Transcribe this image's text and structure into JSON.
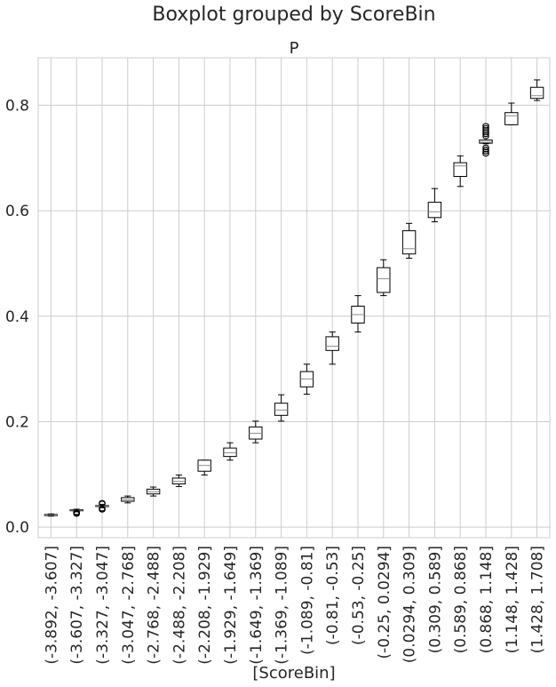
{
  "chart_data": {
    "type": "boxplot",
    "suptitle": "Boxplot grouped by ScoreBin",
    "title": "P",
    "xlabel": "[ScoreBin]",
    "ylabel": "",
    "ylim": [
      -0.02,
      0.89
    ],
    "yticks": [
      0.0,
      0.2,
      0.4,
      0.6,
      0.8
    ],
    "ytick_labels": [
      "0.0",
      "0.2",
      "0.4",
      "0.6",
      "0.8"
    ],
    "grid": true,
    "categories": [
      "(-3.892, -3.607]",
      "(-3.607, -3.327]",
      "(-3.327, -3.047]",
      "(-3.047, -2.768]",
      "(-2.768, -2.488]",
      "(-2.488, -2.208]",
      "(-2.208, -1.929]",
      "(-1.929, -1.649]",
      "(-1.649, -1.369]",
      "(-1.369, -1.089]",
      "(-1.089, -0.81]",
      "(-0.81, -0.53]",
      "(-0.53, -0.25]",
      "(-0.25, 0.0294]",
      "(0.0294, 0.309]",
      "(0.309, 0.589]",
      "(0.589, 0.868]",
      "(0.868, 1.148]",
      "(1.148, 1.428]",
      "(1.428, 1.708]"
    ],
    "boxes": [
      {
        "whislo": 0.021,
        "q1": 0.022,
        "med": 0.023,
        "q3": 0.024,
        "whishi": 0.025,
        "fliers": []
      },
      {
        "whislo": 0.03,
        "q1": 0.031,
        "med": 0.032,
        "q3": 0.033,
        "whishi": 0.034,
        "fliers": [
          0.025,
          0.026,
          0.027,
          0.028
        ]
      },
      {
        "whislo": 0.037,
        "q1": 0.039,
        "med": 0.04,
        "q3": 0.041,
        "whishi": 0.043,
        "fliers": [
          0.033,
          0.035,
          0.045,
          0.046
        ]
      },
      {
        "whislo": 0.046,
        "q1": 0.049,
        "med": 0.052,
        "q3": 0.056,
        "whishi": 0.059,
        "fliers": []
      },
      {
        "whislo": 0.059,
        "q1": 0.063,
        "med": 0.067,
        "q3": 0.072,
        "whishi": 0.076,
        "fliers": []
      },
      {
        "whislo": 0.077,
        "q1": 0.082,
        "med": 0.087,
        "q3": 0.093,
        "whishi": 0.099,
        "fliers": []
      },
      {
        "whislo": 0.099,
        "q1": 0.106,
        "med": 0.117,
        "q3": 0.127,
        "whishi": 0.127,
        "fliers": []
      },
      {
        "whislo": 0.127,
        "q1": 0.134,
        "med": 0.141,
        "q3": 0.15,
        "whishi": 0.16,
        "fliers": []
      },
      {
        "whislo": 0.16,
        "q1": 0.167,
        "med": 0.178,
        "q3": 0.19,
        "whishi": 0.201,
        "fliers": []
      },
      {
        "whislo": 0.201,
        "q1": 0.212,
        "med": 0.222,
        "q3": 0.235,
        "whishi": 0.251,
        "fliers": []
      },
      {
        "whislo": 0.252,
        "q1": 0.266,
        "med": 0.281,
        "q3": 0.295,
        "whishi": 0.309,
        "fliers": []
      },
      {
        "whislo": 0.309,
        "q1": 0.335,
        "med": 0.343,
        "q3": 0.361,
        "whishi": 0.37,
        "fliers": []
      },
      {
        "whislo": 0.37,
        "q1": 0.387,
        "med": 0.403,
        "q3": 0.419,
        "whishi": 0.439,
        "fliers": []
      },
      {
        "whislo": 0.439,
        "q1": 0.445,
        "med": 0.471,
        "q3": 0.492,
        "whishi": 0.507,
        "fliers": []
      },
      {
        "whislo": 0.51,
        "q1": 0.518,
        "med": 0.528,
        "q3": 0.562,
        "whishi": 0.576,
        "fliers": []
      },
      {
        "whislo": 0.579,
        "q1": 0.587,
        "med": 0.598,
        "q3": 0.616,
        "whishi": 0.642,
        "fliers": []
      },
      {
        "whislo": 0.646,
        "q1": 0.665,
        "med": 0.685,
        "q3": 0.691,
        "whishi": 0.704,
        "fliers": []
      },
      {
        "whislo": 0.727,
        "q1": 0.728,
        "med": 0.73,
        "q3": 0.734,
        "whishi": 0.734,
        "fliers": [
          0.708,
          0.712,
          0.716,
          0.72,
          0.741,
          0.745,
          0.749,
          0.753,
          0.757,
          0.761
        ]
      },
      {
        "whislo": 0.763,
        "q1": 0.763,
        "med": 0.78,
        "q3": 0.786,
        "whishi": 0.804,
        "fliers": []
      },
      {
        "whislo": 0.809,
        "q1": 0.813,
        "med": 0.818,
        "q3": 0.834,
        "whishi": 0.848,
        "fliers": []
      }
    ]
  }
}
